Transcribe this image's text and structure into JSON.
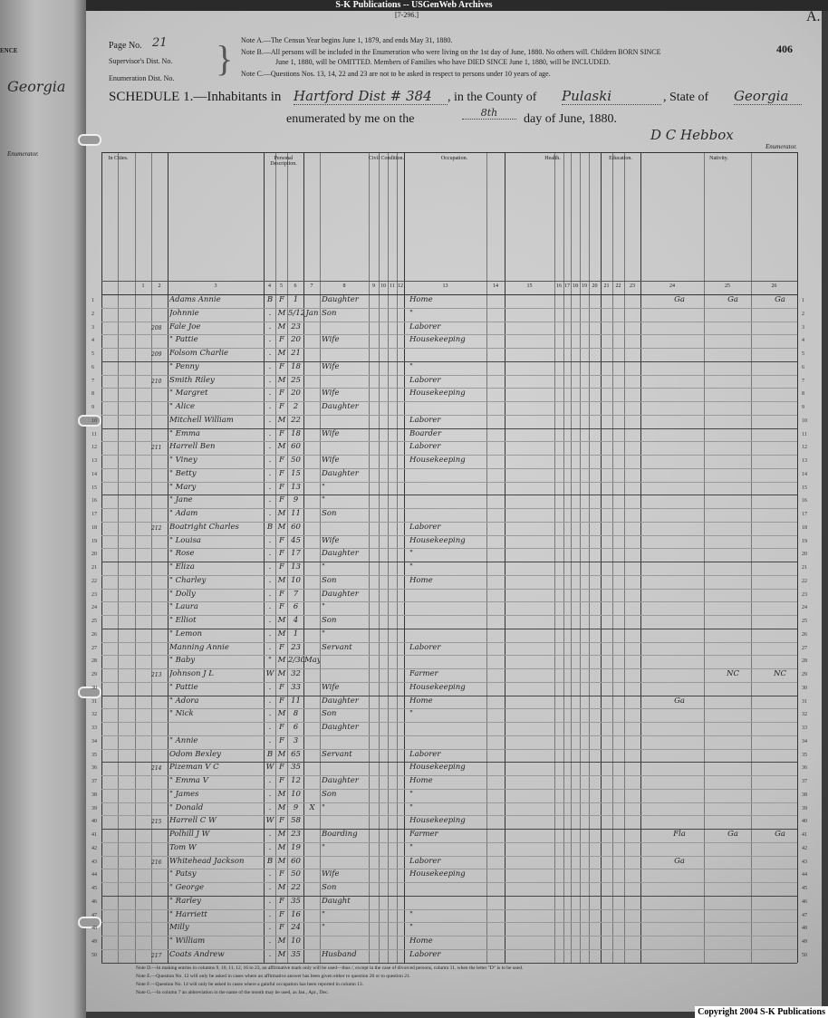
{
  "archive_title": "S-K Publications -- USGenWeb Archives",
  "form_number": "[7-296.]",
  "corner_letter": "A.",
  "stamp_number": "406",
  "left_page": {
    "fragment_top": "ENCE",
    "fragment_state": "Georgia",
    "fragment_enumerator": "Enumerator."
  },
  "header": {
    "page_no_label": "Page No.",
    "page_no_value": "21",
    "supervisor_label": "Supervisor's Dist. No.",
    "enumeration_label": "Enumeration Dist. No.",
    "note_a": "Note A.—The Census Year begins June 1, 1879, and ends May 31, 1880.",
    "note_b1": "Note B.—All persons will be included in the Enumeration who were living on the 1st day of June, 1880. No others will. Children BORN SINCE",
    "note_b2": "June 1, 1880, will be OMITTED. Members of Families who have DIED SINCE June 1, 1880, will be INCLUDED.",
    "note_c": "Note C.—Questions Nos. 13, 14, 22 and 23 are not to be asked in respect to persons under 10 years of age.",
    "schedule_label": "SCHEDULE 1.—Inhabitants in",
    "place": "Hartford Dist # 384",
    "county_label": ", in the County of",
    "county": "Pulaski",
    "state_label": ", State of",
    "state": "Georgia",
    "enumerated_label": "enumerated by me on the",
    "day": "8th",
    "day_suffix": "day of June, 1880.",
    "enumerator_signature": "D C Hebbox",
    "enumerator_label": "Enumerator."
  },
  "sections": {
    "cities": "In Cities.",
    "personal": "Personal Description.",
    "civil": "Civil Condition.",
    "occupation": "Occupation.",
    "health": "Health.",
    "education": "Education.",
    "nativity": "Nativity."
  },
  "column_numbers": [
    "1",
    "2",
    "3",
    "4",
    "5",
    "6",
    "7",
    "8",
    "9",
    "10",
    "11",
    "12",
    "13",
    "14",
    "15",
    "16",
    "17",
    "18",
    "19",
    "20",
    "21",
    "22",
    "23",
    "24",
    "25",
    "26"
  ],
  "rows": [
    {
      "dw": "",
      "name": "Adams Annie",
      "color": "B",
      "sex": "F",
      "age": "1",
      "month": "",
      "rel": "Daughter",
      "occ": "Home",
      "n24": "Ga",
      "n25": "Ga",
      "n26": "Ga"
    },
    {
      "dw": "",
      "name": "Johnnie",
      "color": ".",
      "sex": "M",
      "age": "5/12",
      "month": "Jan",
      "rel": "Son",
      "occ": "\"",
      "n24": "",
      "n25": "",
      "n26": ""
    },
    {
      "dw": "208",
      "name": "Fale Joe",
      "color": ".",
      "sex": "M",
      "age": "23",
      "month": "",
      "rel": "",
      "occ": "Laborer",
      "n24": "",
      "n25": "",
      "n26": ""
    },
    {
      "dw": "",
      "name": "\" Pattie",
      "color": ".",
      "sex": "F",
      "age": "20",
      "month": "",
      "rel": "Wife",
      "occ": "Housekeeping",
      "n24": "",
      "n25": "",
      "n26": ""
    },
    {
      "dw": "209",
      "name": "Folsom Charlie",
      "color": ".",
      "sex": "M",
      "age": "21",
      "month": "",
      "rel": "",
      "occ": "",
      "n24": "",
      "n25": "",
      "n26": ""
    },
    {
      "dw": "",
      "name": "\" Penny",
      "color": ".",
      "sex": "F",
      "age": "18",
      "month": "",
      "rel": "Wife",
      "occ": "\"",
      "n24": "",
      "n25": "",
      "n26": ""
    },
    {
      "dw": "210",
      "name": "Smith Riley",
      "color": ".",
      "sex": "M",
      "age": "25",
      "month": "",
      "rel": "",
      "occ": "Laborer",
      "n24": "",
      "n25": "",
      "n26": ""
    },
    {
      "dw": "",
      "name": "\" Margret",
      "color": ".",
      "sex": "F",
      "age": "20",
      "month": "",
      "rel": "Wife",
      "occ": "Housekeeping",
      "n24": "",
      "n25": "",
      "n26": ""
    },
    {
      "dw": "",
      "name": "\" Alice",
      "color": ".",
      "sex": "F",
      "age": "2",
      "month": "",
      "rel": "Daughter",
      "occ": "",
      "n24": "",
      "n25": "",
      "n26": ""
    },
    {
      "dw": "",
      "name": "Mitchell William",
      "color": ".",
      "sex": "M",
      "age": "22",
      "month": "",
      "rel": "",
      "occ": "Laborer",
      "n24": "",
      "n25": "",
      "n26": ""
    },
    {
      "dw": "",
      "name": "\" Emma",
      "color": ".",
      "sex": "F",
      "age": "18",
      "month": "",
      "rel": "Wife",
      "occ": "Boarder",
      "n24": "",
      "n25": "",
      "n26": ""
    },
    {
      "dw": "211",
      "name": "Harrell Ben",
      "color": ".",
      "sex": "M",
      "age": "60",
      "month": "",
      "rel": "",
      "occ": "Laborer",
      "n24": "",
      "n25": "",
      "n26": ""
    },
    {
      "dw": "",
      "name": "\" Viney",
      "color": ".",
      "sex": "F",
      "age": "50",
      "month": "",
      "rel": "Wife",
      "occ": "Housekeeping",
      "n24": "",
      "n25": "",
      "n26": ""
    },
    {
      "dw": "",
      "name": "\" Betty",
      "color": ".",
      "sex": "F",
      "age": "15",
      "month": "",
      "rel": "Daughter",
      "occ": "",
      "n24": "",
      "n25": "",
      "n26": ""
    },
    {
      "dw": "",
      "name": "\" Mary",
      "color": ".",
      "sex": "F",
      "age": "13",
      "month": "",
      "rel": "\"",
      "occ": "",
      "n24": "",
      "n25": "",
      "n26": ""
    },
    {
      "dw": "",
      "name": "\" Jane",
      "color": ".",
      "sex": "F",
      "age": "9",
      "month": "",
      "rel": "\"",
      "occ": "",
      "n24": "",
      "n25": "",
      "n26": ""
    },
    {
      "dw": "",
      "name": "\" Adam",
      "color": ".",
      "sex": "M",
      "age": "11",
      "month": "",
      "rel": "Son",
      "occ": "",
      "n24": "",
      "n25": "",
      "n26": ""
    },
    {
      "dw": "212",
      "name": "Boatright Charles",
      "color": "B",
      "sex": "M",
      "age": "60",
      "month": "",
      "rel": "",
      "occ": "Laborer",
      "n24": "",
      "n25": "",
      "n26": ""
    },
    {
      "dw": "",
      "name": "\" Louisa",
      "color": ".",
      "sex": "F",
      "age": "45",
      "month": "",
      "rel": "Wife",
      "occ": "Housekeeping",
      "n24": "",
      "n25": "",
      "n26": ""
    },
    {
      "dw": "",
      "name": "\" Rose",
      "color": ".",
      "sex": "F",
      "age": "17",
      "month": "",
      "rel": "Daughter",
      "occ": "\"",
      "n24": "",
      "n25": "",
      "n26": ""
    },
    {
      "dw": "",
      "name": "\" Eliza",
      "color": ".",
      "sex": "F",
      "age": "13",
      "month": "",
      "rel": "\"",
      "occ": "\"",
      "n24": "",
      "n25": "",
      "n26": ""
    },
    {
      "dw": "",
      "name": "\" Charley",
      "color": ".",
      "sex": "M",
      "age": "10",
      "month": "",
      "rel": "Son",
      "occ": "Home",
      "n24": "",
      "n25": "",
      "n26": ""
    },
    {
      "dw": "",
      "name": "\" Dolly",
      "color": ".",
      "sex": "F",
      "age": "7",
      "month": "",
      "rel": "Daughter",
      "occ": "",
      "n24": "",
      "n25": "",
      "n26": ""
    },
    {
      "dw": "",
      "name": "\" Laura",
      "color": ".",
      "sex": "F",
      "age": "6",
      "month": "",
      "rel": "\"",
      "occ": "",
      "n24": "",
      "n25": "",
      "n26": ""
    },
    {
      "dw": "",
      "name": "\" Elliot",
      "color": ".",
      "sex": "M",
      "age": "4",
      "month": "",
      "rel": "Son",
      "occ": "",
      "n24": "",
      "n25": "",
      "n26": ""
    },
    {
      "dw": "",
      "name": "\" Lemon",
      "color": ".",
      "sex": "M",
      "age": "1",
      "month": "",
      "rel": "\"",
      "occ": "",
      "n24": "",
      "n25": "",
      "n26": ""
    },
    {
      "dw": "",
      "name": "Manning Annie",
      "color": ".",
      "sex": "F",
      "age": "23",
      "month": "",
      "rel": "Servant",
      "occ": "Laborer",
      "n24": "",
      "n25": "",
      "n26": ""
    },
    {
      "dw": "",
      "name": "\" Baby",
      "color": "\"",
      "sex": "M",
      "age": "2/30",
      "month": "May",
      "rel": "",
      "occ": "",
      "n24": "",
      "n25": "",
      "n26": ""
    },
    {
      "dw": "213",
      "name": "Johnson J L",
      "color": "W",
      "sex": "M",
      "age": "32",
      "month": "",
      "rel": "",
      "occ": "Farmer",
      "n24": "",
      "n25": "NC",
      "n26": "NC"
    },
    {
      "dw": "",
      "name": "\" Pattie",
      "color": ".",
      "sex": "F",
      "age": "33",
      "month": "",
      "rel": "Wife",
      "occ": "Housekeeping",
      "n24": "",
      "n25": "",
      "n26": ""
    },
    {
      "dw": "",
      "name": "\" Adora",
      "color": ".",
      "sex": "F",
      "age": "11",
      "month": "",
      "rel": "Daughter",
      "occ": "Home",
      "n24": "Ga",
      "n25": "",
      "n26": ""
    },
    {
      "dw": "",
      "name": "\" Nick",
      "color": ".",
      "sex": "M",
      "age": "8",
      "month": "",
      "rel": "Son",
      "occ": "\"",
      "n24": "",
      "n25": "",
      "n26": ""
    },
    {
      "dw": "",
      "name": "",
      "color": ".",
      "sex": "F",
      "age": "6",
      "month": "",
      "rel": "Daughter",
      "occ": "",
      "n24": "",
      "n25": "",
      "n26": ""
    },
    {
      "dw": "",
      "name": "\" Annie",
      "color": ".",
      "sex": "F",
      "age": "3",
      "month": "",
      "rel": "",
      "occ": "",
      "n24": "",
      "n25": "",
      "n26": ""
    },
    {
      "dw": "",
      "name": "Odom Bexley",
      "color": "B",
      "sex": "M",
      "age": "65",
      "month": "",
      "rel": "Servant",
      "occ": "Laborer",
      "n24": "",
      "n25": "",
      "n26": ""
    },
    {
      "dw": "214",
      "name": "Pizeman V C",
      "color": "W",
      "sex": "F",
      "age": "35",
      "month": "",
      "rel": "",
      "occ": "Housekeeping",
      "n24": "",
      "n25": "",
      "n26": ""
    },
    {
      "dw": "",
      "name": "\" Emma V",
      "color": ".",
      "sex": "F",
      "age": "12",
      "month": "",
      "rel": "Daughter",
      "occ": "Home",
      "n24": "",
      "n25": "",
      "n26": ""
    },
    {
      "dw": "",
      "name": "\" James",
      "color": ".",
      "sex": "M",
      "age": "10",
      "month": "",
      "rel": "Son",
      "occ": "\"",
      "n24": "",
      "n25": "",
      "n26": ""
    },
    {
      "dw": "",
      "name": "\" Donald",
      "color": ".",
      "sex": "M",
      "age": "9",
      "month": "X",
      "rel": "\"",
      "occ": "\"",
      "n24": "",
      "n25": "",
      "n26": ""
    },
    {
      "dw": "215",
      "name": "Harrell C W",
      "color": "W",
      "sex": "F",
      "age": "58",
      "month": "",
      "rel": "",
      "occ": "Housekeeping",
      "n24": "",
      "n25": "",
      "n26": ""
    },
    {
      "dw": "",
      "name": "Polhill J W",
      "color": ".",
      "sex": "M",
      "age": "23",
      "month": "",
      "rel": "Boarding",
      "occ": "Farmer",
      "n24": "Fla",
      "n25": "Ga",
      "n26": "Ga"
    },
    {
      "dw": "",
      "name": "Tom W",
      "color": ".",
      "sex": "M",
      "age": "19",
      "month": "",
      "rel": "\"",
      "occ": "\"",
      "n24": "",
      "n25": "",
      "n26": ""
    },
    {
      "dw": "216",
      "name": "Whitehead Jackson",
      "color": "B",
      "sex": "M",
      "age": "60",
      "month": "",
      "rel": "",
      "occ": "Laborer",
      "n24": "Ga",
      "n25": "",
      "n26": ""
    },
    {
      "dw": "",
      "name": "\" Patsy",
      "color": ".",
      "sex": "F",
      "age": "50",
      "month": "",
      "rel": "Wife",
      "occ": "Housekeeping",
      "n24": "",
      "n25": "",
      "n26": ""
    },
    {
      "dw": "",
      "name": "\" George",
      "color": ".",
      "sex": "M",
      "age": "22",
      "month": "",
      "rel": "Son",
      "occ": "",
      "n24": "",
      "n25": "",
      "n26": ""
    },
    {
      "dw": "",
      "name": "\" Rarley",
      "color": ".",
      "sex": "F",
      "age": "35",
      "month": "",
      "rel": "Daught",
      "occ": "",
      "n24": "",
      "n25": "",
      "n26": ""
    },
    {
      "dw": "",
      "name": "\" Harriett",
      "color": ".",
      "sex": "F",
      "age": "16",
      "month": "",
      "rel": "\"",
      "occ": "\"",
      "n24": "",
      "n25": "",
      "n26": ""
    },
    {
      "dw": "",
      "name": "Milly",
      "color": ".",
      "sex": "F",
      "age": "24",
      "month": "",
      "rel": "\"",
      "occ": "\"",
      "n24": "",
      "n25": "",
      "n26": ""
    },
    {
      "dw": "",
      "name": "\" William",
      "color": ".",
      "sex": "M",
      "age": "10",
      "month": "",
      "rel": "",
      "occ": "Home",
      "n24": "",
      "n25": "",
      "n26": ""
    },
    {
      "dw": "217",
      "name": "Coats Andrew",
      "color": ".",
      "sex": "M",
      "age": "35",
      "month": "",
      "rel": "Husband",
      "occ": "Laborer",
      "n24": "",
      "n25": "",
      "n26": ""
    }
  ],
  "footer_notes": [
    "Note D.—In making entries in columns 9, 10, 11, 12, 16 to 23, an affirmative mark only will be used—thus /, except in the case of divorced persons, column 11, when the letter \"D\" is to be used.",
    "Note E.—Question No. 12 will only be asked in cases where an affirmative answer has been given either to question 20 or to question 21.",
    "Note F.—Question No. 14 will only be asked in cases where a gainful occupation has been reported in column 13.",
    "Note G.—In column 7 an abbreviation in the name of the month may be used, as Jan., Apr., Dec."
  ],
  "copyright": "Copyright 2004 S-K Publications"
}
